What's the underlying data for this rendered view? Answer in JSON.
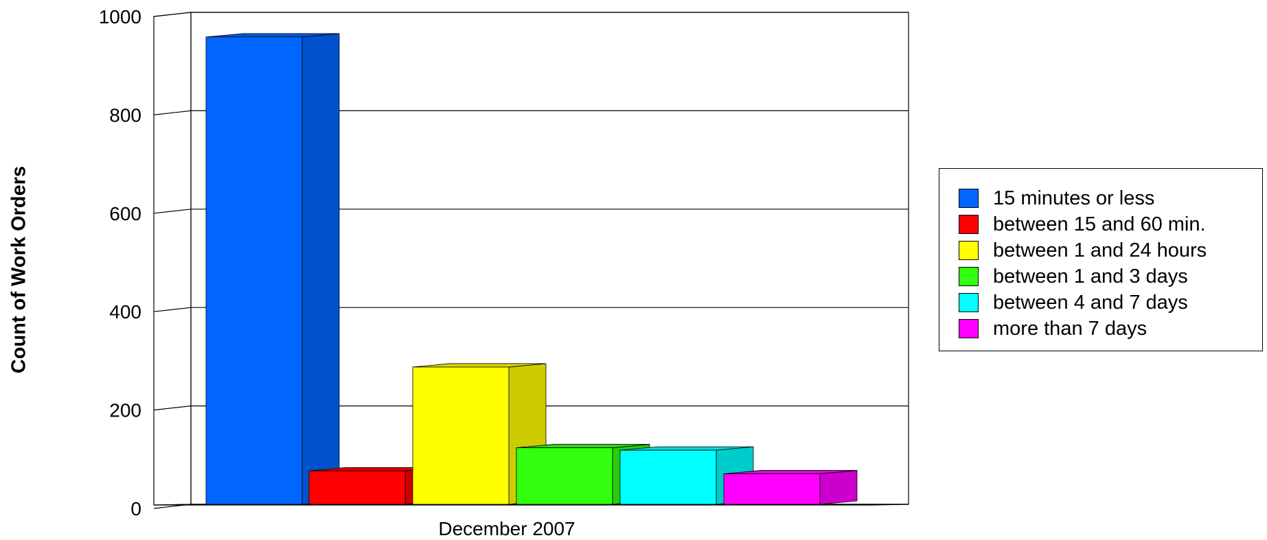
{
  "chart_data": {
    "type": "bar",
    "style": "3d-clustered",
    "categories": [
      "December 2007"
    ],
    "series": [
      {
        "name": "15 minutes or less",
        "values": [
          950
        ],
        "color": "#0066ff"
      },
      {
        "name": "between 15 and 60 min.",
        "values": [
          68
        ],
        "color": "#ff0000"
      },
      {
        "name": "between 1 and 24 hours",
        "values": [
          279
        ],
        "color": "#ffff00"
      },
      {
        "name": "between 1 and 3 days",
        "values": [
          115
        ],
        "color": "#33ff11"
      },
      {
        "name": "between 4 and 7 days",
        "values": [
          110
        ],
        "color": "#00ffff"
      },
      {
        "name": "more than 7 days",
        "values": [
          62
        ],
        "color": "#ff00ff"
      }
    ],
    "ylabel": "Count of Work Orders",
    "xlabel": "",
    "ylim": [
      0,
      1000
    ],
    "yticks": [
      "0",
      "200",
      "400",
      "600",
      "800",
      "1000"
    ],
    "grid": true,
    "legend_position": "right"
  }
}
